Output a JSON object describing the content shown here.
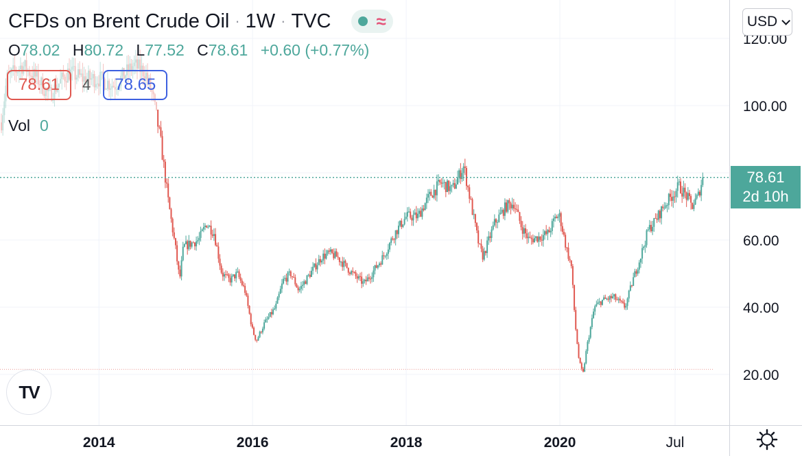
{
  "header": {
    "symbol": "CFDs on Brent Crude Oil",
    "interval": "1W",
    "source": "TVC",
    "separator": "·",
    "approx_icon": "≈"
  },
  "ohlc": {
    "o_label": "O",
    "o": "78.02",
    "h_label": "H",
    "h": "80.72",
    "l_label": "L",
    "l": "77.52",
    "c_label": "C",
    "c": "78.61",
    "change": "+0.60 (+0.77%)"
  },
  "quote": {
    "bid": "78.61",
    "spread": "4",
    "ask": "78.65"
  },
  "volume": {
    "label": "Vol",
    "value": "0"
  },
  "currency_button": "USD",
  "last_price": {
    "value": "78.61",
    "countdown": "2d 10h"
  },
  "logo_text": "TV",
  "colors": {
    "up": "#4da79b",
    "down": "#e0574f",
    "bid": "#e0574f",
    "ask": "#3c5fe0"
  },
  "chart_data": {
    "type": "candlestick",
    "y_ticks": [
      "20.00",
      "40.00",
      "60.00",
      "100.00",
      "120.00"
    ],
    "x_ticks": [
      "2014",
      "2016",
      "2018",
      "2020",
      "Jul"
    ],
    "ylim": [
      10,
      122
    ],
    "xlim": [
      2012.73,
      2022.0
    ],
    "x_tick_positions": [
      2014.0,
      2016.0,
      2018.0,
      2020.0,
      2021.5
    ],
    "last_price_line": 78.61,
    "low_dotted_line": 21.5,
    "price_path": [
      [
        2012.73,
        95
      ],
      [
        2012.8,
        108
      ],
      [
        2013.0,
        112
      ],
      [
        2013.2,
        108
      ],
      [
        2013.35,
        103
      ],
      [
        2013.6,
        110
      ],
      [
        2013.8,
        108
      ],
      [
        2014.0,
        108
      ],
      [
        2014.2,
        106
      ],
      [
        2014.45,
        112
      ],
      [
        2014.6,
        110
      ],
      [
        2014.7,
        103
      ],
      [
        2014.8,
        90
      ],
      [
        2014.9,
        72
      ],
      [
        2015.0,
        57
      ],
      [
        2015.05,
        48
      ],
      [
        2015.1,
        58
      ],
      [
        2015.3,
        60
      ],
      [
        2015.4,
        65
      ],
      [
        2015.5,
        62
      ],
      [
        2015.6,
        50
      ],
      [
        2015.7,
        48
      ],
      [
        2015.8,
        50
      ],
      [
        2015.9,
        45
      ],
      [
        2016.0,
        33
      ],
      [
        2016.05,
        30
      ],
      [
        2016.15,
        35
      ],
      [
        2016.3,
        40
      ],
      [
        2016.4,
        48
      ],
      [
        2016.5,
        50
      ],
      [
        2016.6,
        45
      ],
      [
        2016.75,
        50
      ],
      [
        2016.9,
        55
      ],
      [
        2017.0,
        56
      ],
      [
        2017.1,
        55
      ],
      [
        2017.3,
        50
      ],
      [
        2017.45,
        47
      ],
      [
        2017.55,
        50
      ],
      [
        2017.7,
        55
      ],
      [
        2017.85,
        62
      ],
      [
        2018.0,
        67
      ],
      [
        2018.15,
        67
      ],
      [
        2018.3,
        73
      ],
      [
        2018.45,
        77
      ],
      [
        2018.6,
        75
      ],
      [
        2018.75,
        82
      ],
      [
        2018.85,
        70
      ],
      [
        2018.95,
        58
      ],
      [
        2019.0,
        55
      ],
      [
        2019.15,
        65
      ],
      [
        2019.3,
        70
      ],
      [
        2019.4,
        71
      ],
      [
        2019.5,
        64
      ],
      [
        2019.6,
        60
      ],
      [
        2019.75,
        61
      ],
      [
        2019.85,
        62
      ],
      [
        2019.95,
        67
      ],
      [
        2020.0,
        67
      ],
      [
        2020.08,
        58
      ],
      [
        2020.15,
        52
      ],
      [
        2020.2,
        35
      ],
      [
        2020.25,
        24
      ],
      [
        2020.3,
        20
      ],
      [
        2020.35,
        28
      ],
      [
        2020.45,
        40
      ],
      [
        2020.55,
        42
      ],
      [
        2020.7,
        43
      ],
      [
        2020.8,
        41
      ],
      [
        2020.85,
        40
      ],
      [
        2020.95,
        48
      ],
      [
        2021.05,
        55
      ],
      [
        2021.15,
        63
      ],
      [
        2021.25,
        66
      ],
      [
        2021.35,
        70
      ],
      [
        2021.45,
        73
      ],
      [
        2021.55,
        76
      ],
      [
        2021.65,
        73
      ],
      [
        2021.72,
        70
      ],
      [
        2021.8,
        73
      ],
      [
        2021.86,
        78.61
      ]
    ]
  }
}
